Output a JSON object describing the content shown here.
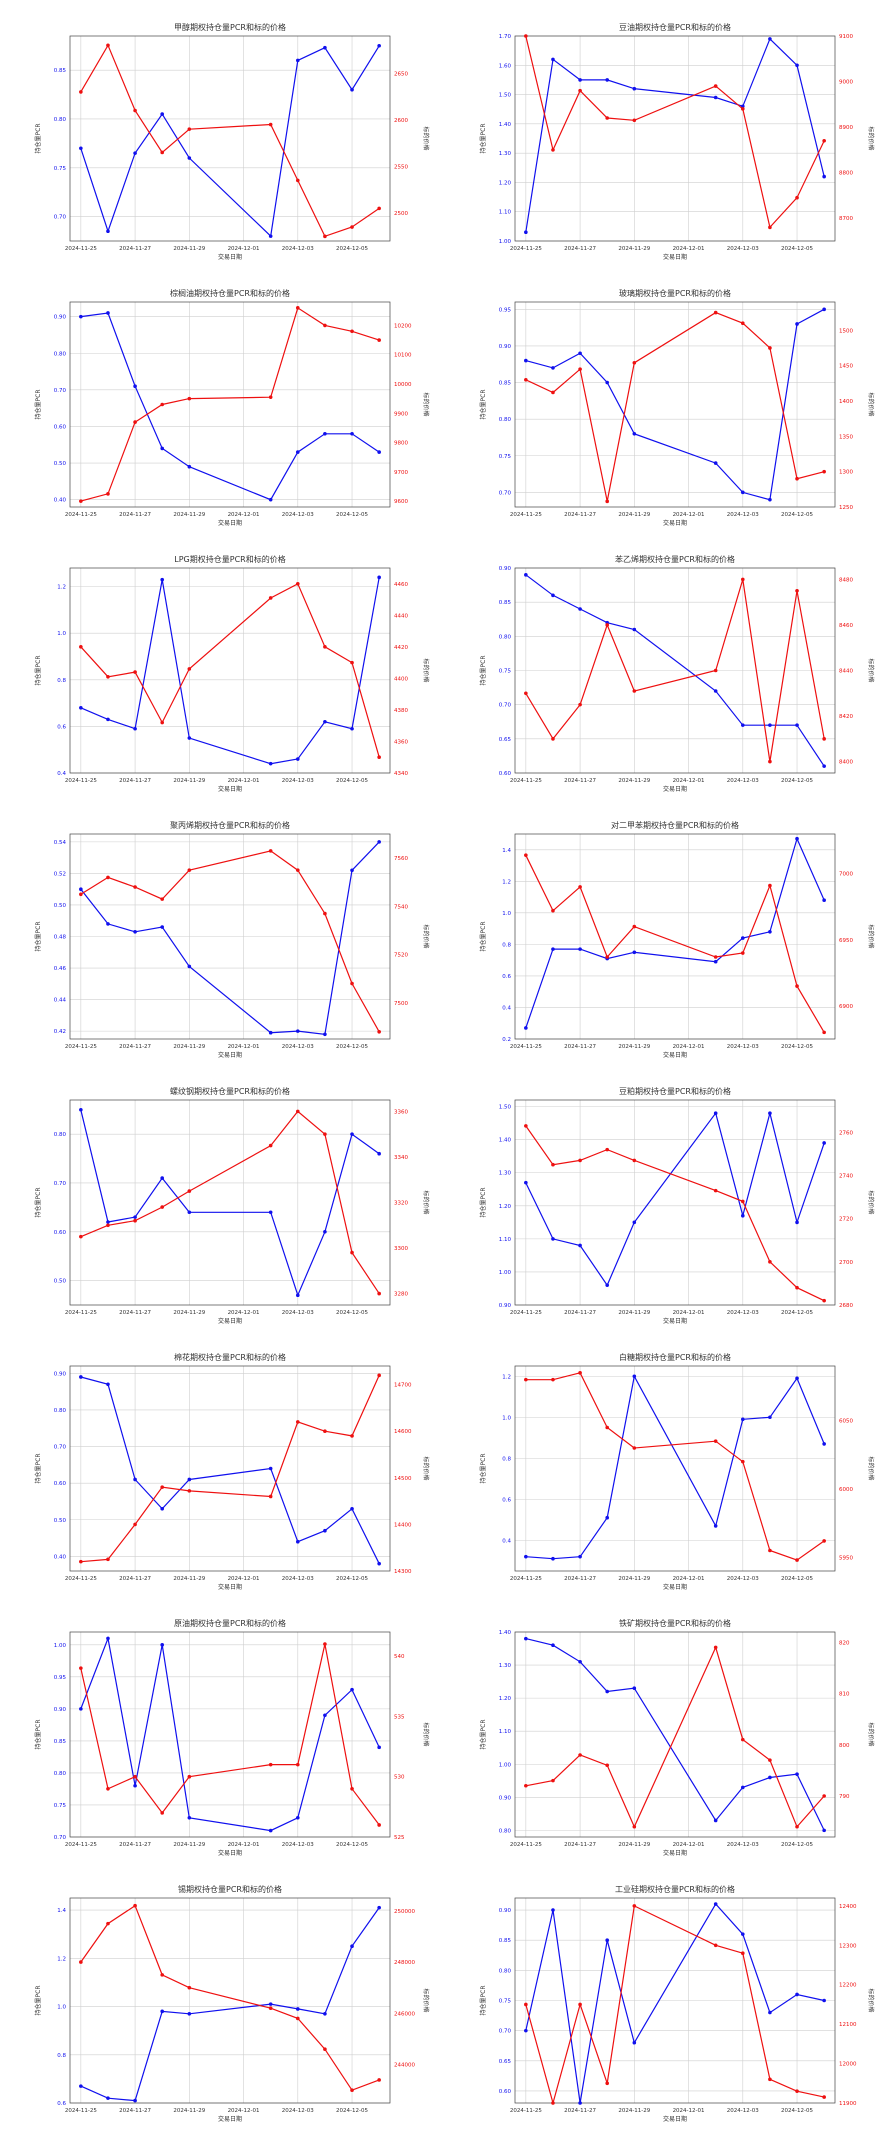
{
  "chart_data": [
    {
      "type": "line",
      "title": "甲醇期权持仓量PCR和标的价格",
      "xlabel": "交易日期",
      "ylabel": "持仓量PCR",
      "y2label": "标的价格",
      "categories": [
        "2024-11-25",
        "2024-11-26",
        "2024-11-27",
        "2024-11-28",
        "2024-11-29",
        "2024-12-02",
        "2024-12-03",
        "2024-12-04",
        "2024-12-05",
        "2024-12-06"
      ],
      "xticks": [
        "2024-11-25",
        "2024-11-27",
        "2024-11-29",
        "2024-12-01",
        "2024-12-03",
        "2024-12-05"
      ],
      "pcr": [
        0.77,
        0.685,
        0.765,
        0.805,
        0.76,
        0.68,
        0.86,
        0.873,
        0.83,
        0.875
      ],
      "ylim": [
        0.675,
        0.885
      ],
      "price": [
        2630,
        2680,
        2610,
        2565,
        2590,
        2595,
        2535,
        2475,
        2485,
        2505
      ],
      "y2lim": [
        2470,
        2690
      ]
    },
    {
      "type": "line",
      "title": "豆油期权持仓量PCR和标的价格",
      "xlabel": "交易日期",
      "ylabel": "持仓量PCR",
      "y2label": "标的价格",
      "categories": [
        "2024-11-25",
        "2024-11-26",
        "2024-11-27",
        "2024-11-28",
        "2024-11-29",
        "2024-12-02",
        "2024-12-03",
        "2024-12-04",
        "2024-12-05",
        "2024-12-06"
      ],
      "xticks": [
        "2024-11-25",
        "2024-11-27",
        "2024-11-29",
        "2024-12-01",
        "2024-12-03",
        "2024-12-05"
      ],
      "pcr": [
        1.03,
        1.62,
        1.55,
        1.55,
        1.52,
        1.49,
        1.46,
        1.69,
        1.6,
        1.22
      ],
      "ylim": [
        1.0,
        1.7
      ],
      "price": [
        9100,
        8850,
        8980,
        8920,
        8915,
        8990,
        8940,
        8680,
        8745,
        8870
      ],
      "y2lim": [
        8650,
        9100
      ]
    },
    {
      "type": "line",
      "title": "棕榈油期权持仓量PCR和标的价格",
      "xlabel": "交易日期",
      "ylabel": "持仓量PCR",
      "y2label": "标的价格",
      "categories": [
        "2024-11-25",
        "2024-11-26",
        "2024-11-27",
        "2024-11-28",
        "2024-11-29",
        "2024-12-02",
        "2024-12-03",
        "2024-12-04",
        "2024-12-05",
        "2024-12-06"
      ],
      "xticks": [
        "2024-11-25",
        "2024-11-27",
        "2024-11-29",
        "2024-12-01",
        "2024-12-03",
        "2024-12-05"
      ],
      "pcr": [
        0.9,
        0.91,
        0.71,
        0.54,
        0.49,
        0.4,
        0.53,
        0.58,
        0.58,
        0.53
      ],
      "ylim": [
        0.38,
        0.94
      ],
      "price": [
        9600,
        9625,
        9870,
        9930,
        9950,
        9955,
        10260,
        10200,
        10180,
        10150
      ],
      "y2lim": [
        9580,
        10280
      ]
    },
    {
      "type": "line",
      "title": "玻璃期权持仓量PCR和标的价格",
      "xlabel": "交易日期",
      "ylabel": "持仓量PCR",
      "y2label": "标的价格",
      "categories": [
        "2024-11-25",
        "2024-11-26",
        "2024-11-27",
        "2024-11-28",
        "2024-11-29",
        "2024-12-02",
        "2024-12-03",
        "2024-12-04",
        "2024-12-05",
        "2024-12-06"
      ],
      "xticks": [
        "2024-11-25",
        "2024-11-27",
        "2024-11-29",
        "2024-12-01",
        "2024-12-03",
        "2024-12-05"
      ],
      "pcr": [
        0.88,
        0.87,
        0.89,
        0.85,
        0.78,
        0.74,
        0.7,
        0.69,
        0.93,
        0.95
      ],
      "ylim": [
        0.68,
        0.96
      ],
      "price": [
        1430,
        1412,
        1445,
        1258,
        1454,
        1525,
        1510,
        1475,
        1290,
        1300
      ],
      "y2lim": [
        1250,
        1540
      ]
    },
    {
      "type": "line",
      "title": "LPG期权持仓量PCR和标的价格",
      "xlabel": "交易日期",
      "ylabel": "持仓量PCR",
      "y2label": "标的价格",
      "categories": [
        "2024-11-25",
        "2024-11-26",
        "2024-11-27",
        "2024-11-28",
        "2024-11-29",
        "2024-12-02",
        "2024-12-03",
        "2024-12-04",
        "2024-12-05",
        "2024-12-06"
      ],
      "xticks": [
        "2024-11-25",
        "2024-11-27",
        "2024-11-29",
        "2024-12-01",
        "2024-12-03",
        "2024-12-05"
      ],
      "pcr": [
        0.68,
        0.63,
        0.59,
        1.23,
        0.55,
        0.44,
        0.46,
        0.62,
        0.59,
        1.24
      ],
      "ylim": [
        0.4,
        1.28
      ],
      "price": [
        4420,
        4401,
        4404,
        4372,
        4406,
        4451,
        4460,
        4420,
        4410,
        4350
      ],
      "y2lim": [
        4340,
        4470
      ]
    },
    {
      "type": "line",
      "title": "苯乙烯期权持仓量PCR和标的价格",
      "xlabel": "交易日期",
      "ylabel": "持仓量PCR",
      "y2label": "标的价格",
      "categories": [
        "2024-11-25",
        "2024-11-26",
        "2024-11-27",
        "2024-11-28",
        "2024-11-29",
        "2024-12-02",
        "2024-12-03",
        "2024-12-04",
        "2024-12-05",
        "2024-12-06"
      ],
      "xticks": [
        "2024-11-25",
        "2024-11-27",
        "2024-11-29",
        "2024-12-01",
        "2024-12-03",
        "2024-12-05"
      ],
      "pcr": [
        0.89,
        0.86,
        0.84,
        0.82,
        0.81,
        0.72,
        0.67,
        0.67,
        0.67,
        0.61
      ],
      "ylim": [
        0.6,
        0.9
      ],
      "price": [
        8430,
        8410,
        8425,
        8460,
        8431,
        8440,
        8480,
        8400,
        8475,
        8410
      ],
      "y2lim": [
        8395,
        8485
      ]
    },
    {
      "type": "line",
      "title": "聚丙烯期权持仓量PCR和标的价格",
      "xlabel": "交易日期",
      "ylabel": "持仓量PCR",
      "y2label": "标的价格",
      "categories": [
        "2024-11-25",
        "2024-11-26",
        "2024-11-27",
        "2024-11-28",
        "2024-11-29",
        "2024-12-02",
        "2024-12-03",
        "2024-12-04",
        "2024-12-05",
        "2024-12-06"
      ],
      "xticks": [
        "2024-11-25",
        "2024-11-27",
        "2024-11-29",
        "2024-12-01",
        "2024-12-03",
        "2024-12-05"
      ],
      "pcr": [
        0.51,
        0.488,
        0.483,
        0.486,
        0.461,
        0.419,
        0.42,
        0.418,
        0.522,
        0.54
      ],
      "ylim": [
        0.415,
        0.545
      ],
      "price": [
        7545,
        7552,
        7548,
        7543,
        7555,
        7563,
        7555,
        7537,
        7508,
        7488
      ],
      "y2lim": [
        7485,
        7570
      ]
    },
    {
      "type": "line",
      "title": "对二甲苯期权持仓量PCR和标的价格",
      "xlabel": "交易日期",
      "ylabel": "持仓量PCR",
      "y2label": "标的价格",
      "categories": [
        "2024-11-25",
        "2024-11-26",
        "2024-11-27",
        "2024-11-28",
        "2024-11-29",
        "2024-12-02",
        "2024-12-03",
        "2024-12-04",
        "2024-12-05",
        "2024-12-06"
      ],
      "xticks": [
        "2024-11-25",
        "2024-11-27",
        "2024-11-29",
        "2024-12-01",
        "2024-12-03",
        "2024-12-05"
      ],
      "pcr": [
        0.27,
        0.77,
        0.77,
        0.71,
        0.75,
        0.69,
        0.84,
        0.88,
        1.47,
        1.08
      ],
      "ylim": [
        0.2,
        1.5
      ],
      "price": [
        7014,
        6972,
        6990,
        6937,
        6960,
        6937,
        6940,
        6991,
        6915,
        6880
      ],
      "y2lim": [
        6875,
        7030
      ]
    },
    {
      "type": "line",
      "title": "螺纹钢期权持仓量PCR和标的价格",
      "xlabel": "交易日期",
      "ylabel": "持仓量PCR",
      "y2label": "标的价格",
      "categories": [
        "2024-11-25",
        "2024-11-26",
        "2024-11-27",
        "2024-11-28",
        "2024-11-29",
        "2024-12-02",
        "2024-12-03",
        "2024-12-04",
        "2024-12-05",
        "2024-12-06"
      ],
      "xticks": [
        "2024-11-25",
        "2024-11-27",
        "2024-11-29",
        "2024-12-01",
        "2024-12-03",
        "2024-12-05"
      ],
      "pcr": [
        0.85,
        0.62,
        0.63,
        0.71,
        0.64,
        0.64,
        0.47,
        0.6,
        0.8,
        0.76
      ],
      "ylim": [
        0.45,
        0.87
      ],
      "price": [
        3305,
        3310,
        3312,
        3318,
        3325,
        3345,
        3360,
        3350,
        3298,
        3280
      ],
      "y2lim": [
        3275,
        3365
      ]
    },
    {
      "type": "line",
      "title": "豆粕期权持仓量PCR和标的价格",
      "xlabel": "交易日期",
      "ylabel": "持仓量PCR",
      "y2label": "标的价格",
      "categories": [
        "2024-11-25",
        "2024-11-26",
        "2024-11-27",
        "2024-11-28",
        "2024-11-29",
        "2024-12-02",
        "2024-12-03",
        "2024-12-04",
        "2024-12-05",
        "2024-12-06"
      ],
      "xticks": [
        "2024-11-25",
        "2024-11-27",
        "2024-11-29",
        "2024-12-01",
        "2024-12-03",
        "2024-12-05"
      ],
      "pcr": [
        1.27,
        1.1,
        1.08,
        0.96,
        1.15,
        1.48,
        1.17,
        1.48,
        1.15,
        1.39
      ],
      "ylim": [
        0.9,
        1.52
      ],
      "price": [
        2763,
        2745,
        2747,
        2752,
        2747,
        2733,
        2728,
        2700,
        2688,
        2682
      ],
      "y2lim": [
        2680,
        2775
      ]
    },
    {
      "type": "line",
      "title": "棉花期权持仓量PCR和标的价格",
      "xlabel": "交易日期",
      "ylabel": "持仓量PCR",
      "y2label": "标的价格",
      "categories": [
        "2024-11-25",
        "2024-11-26",
        "2024-11-27",
        "2024-11-28",
        "2024-11-29",
        "2024-12-02",
        "2024-12-03",
        "2024-12-04",
        "2024-12-05",
        "2024-12-06"
      ],
      "xticks": [
        "2024-11-25",
        "2024-11-27",
        "2024-11-29",
        "2024-12-01",
        "2024-12-03",
        "2024-12-05"
      ],
      "pcr": [
        0.89,
        0.87,
        0.61,
        0.53,
        0.61,
        0.64,
        0.44,
        0.47,
        0.53,
        0.38
      ],
      "ylim": [
        0.36,
        0.92
      ],
      "price": [
        14320,
        14325,
        14400,
        14480,
        14472,
        14460,
        14620,
        14600,
        14590,
        14720
      ],
      "y2lim": [
        14300,
        14740
      ]
    },
    {
      "type": "line",
      "title": "白糖期权持仓量PCR和标的价格",
      "xlabel": "交易日期",
      "ylabel": "持仓量PCR",
      "y2label": "标的价格",
      "categories": [
        "2024-11-25",
        "2024-11-26",
        "2024-11-27",
        "2024-11-28",
        "2024-11-29",
        "2024-12-02",
        "2024-12-03",
        "2024-12-04",
        "2024-12-05",
        "2024-12-06"
      ],
      "xticks": [
        "2024-11-25",
        "2024-11-27",
        "2024-11-29",
        "2024-12-01",
        "2024-12-03",
        "2024-12-05"
      ],
      "pcr": [
        0.32,
        0.31,
        0.32,
        0.51,
        1.2,
        0.47,
        0.99,
        1.0,
        1.19,
        0.87
      ],
      "ylim": [
        0.25,
        1.25
      ],
      "price": [
        6080,
        6080,
        6085,
        6045,
        6030,
        6035,
        6020,
        5955,
        5948,
        5962
      ],
      "y2lim": [
        5940,
        6090
      ]
    },
    {
      "type": "line",
      "title": "原油期权持仓量PCR和标的价格",
      "xlabel": "交易日期",
      "ylabel": "持仓量PCR",
      "y2label": "标的价格",
      "categories": [
        "2024-11-25",
        "2024-11-26",
        "2024-11-27",
        "2024-11-28",
        "2024-11-29",
        "2024-12-02",
        "2024-12-03",
        "2024-12-04",
        "2024-12-05",
        "2024-12-06"
      ],
      "xticks": [
        "2024-11-25",
        "2024-11-27",
        "2024-11-29",
        "2024-12-01",
        "2024-12-03",
        "2024-12-05"
      ],
      "pcr": [
        0.9,
        1.01,
        0.78,
        1.0,
        0.73,
        0.71,
        0.73,
        0.89,
        0.93,
        0.84
      ],
      "ylim": [
        0.7,
        1.02
      ],
      "price": [
        539,
        529,
        530,
        527,
        530,
        531,
        531,
        541,
        529,
        526
      ],
      "y2lim": [
        525,
        542
      ]
    },
    {
      "type": "line",
      "title": "铁矿期权持仓量PCR和标的价格",
      "xlabel": "交易日期",
      "ylabel": "持仓量PCR",
      "y2label": "标的价格",
      "categories": [
        "2024-11-25",
        "2024-11-26",
        "2024-11-27",
        "2024-11-28",
        "2024-11-29",
        "2024-12-02",
        "2024-12-03",
        "2024-12-04",
        "2024-12-05",
        "2024-12-06"
      ],
      "xticks": [
        "2024-11-25",
        "2024-11-27",
        "2024-11-29",
        "2024-12-01",
        "2024-12-03",
        "2024-12-05"
      ],
      "pcr": [
        1.38,
        1.36,
        1.31,
        1.22,
        1.23,
        0.83,
        0.93,
        0.96,
        0.97,
        0.8
      ],
      "ylim": [
        0.78,
        1.4
      ],
      "price": [
        792,
        793,
        798,
        796,
        784,
        819,
        801,
        797,
        784,
        790
      ],
      "y2lim": [
        782,
        822
      ]
    },
    {
      "type": "line",
      "title": "锡期权持仓量PCR和标的价格",
      "xlabel": "交易日期",
      "ylabel": "持仓量PCR",
      "y2label": "标的价格",
      "categories": [
        "2024-11-25",
        "2024-11-26",
        "2024-11-27",
        "2024-11-28",
        "2024-11-29",
        "2024-12-02",
        "2024-12-03",
        "2024-12-04",
        "2024-12-05",
        "2024-12-06"
      ],
      "xticks": [
        "2024-11-25",
        "2024-11-27",
        "2024-11-29",
        "2024-12-01",
        "2024-12-03",
        "2024-12-05"
      ],
      "pcr": [
        0.67,
        0.62,
        0.61,
        0.98,
        0.97,
        1.01,
        0.99,
        0.97,
        1.25,
        1.41
      ],
      "ylim": [
        0.6,
        1.45
      ],
      "price": [
        248000,
        249500,
        250200,
        247500,
        247000,
        246200,
        245800,
        244600,
        243000,
        243400
      ],
      "y2lim": [
        242500,
        250500
      ]
    },
    {
      "type": "line",
      "title": "工业硅期权持仓量PCR和标的价格",
      "xlabel": "交易日期",
      "ylabel": "持仓量PCR",
      "y2label": "标的价格",
      "categories": [
        "2024-11-25",
        "2024-11-26",
        "2024-11-27",
        "2024-11-28",
        "2024-11-29",
        "2024-12-02",
        "2024-12-03",
        "2024-12-04",
        "2024-12-05",
        "2024-12-06"
      ],
      "xticks": [
        "2024-11-25",
        "2024-11-27",
        "2024-11-29",
        "2024-12-01",
        "2024-12-03",
        "2024-12-05"
      ],
      "pcr": [
        0.7,
        0.9,
        0.58,
        0.85,
        0.68,
        0.91,
        0.86,
        0.73,
        0.76,
        0.75
      ],
      "ylim": [
        0.58,
        0.92
      ],
      "price": [
        12150,
        11900,
        12150,
        11950,
        12400,
        12300,
        12280,
        11960,
        11930,
        11915
      ],
      "y2lim": [
        11900,
        12420
      ]
    }
  ]
}
